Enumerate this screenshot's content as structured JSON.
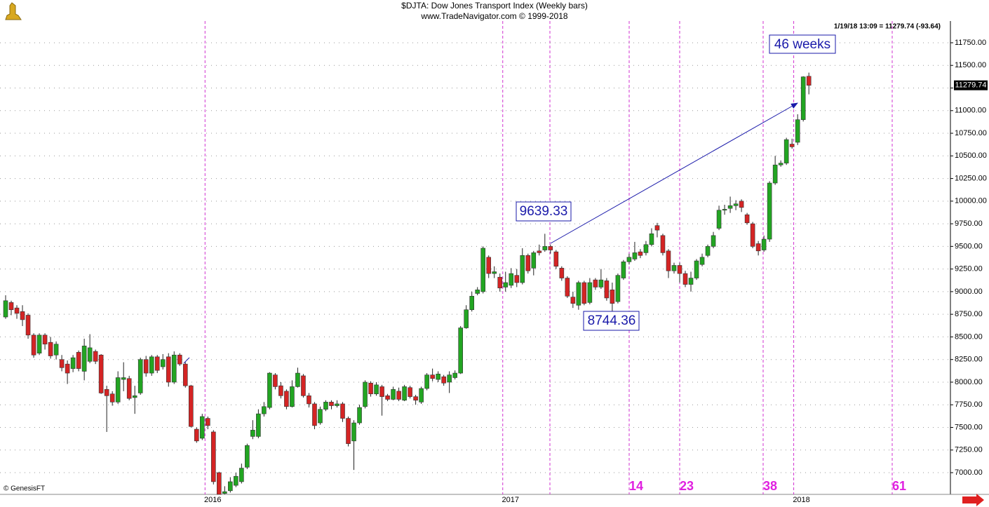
{
  "chart_data": {
    "type": "candlestick",
    "title": "$DJTA:  Dow Jones Transport Index  (Weekly bars)",
    "subtitle": "www.TradeNavigator.com © 1999-2018",
    "info": "1/19/18 13:09 = 11279.74 (-93.64)",
    "annotation": "46 weeks",
    "credit": "© GenesisFT",
    "cycle_labels": [
      14,
      23,
      38,
      61
    ],
    "up_color": "#22a522",
    "down_color": "#d42424",
    "ylim": [
      6760,
      11990
    ],
    "xlim": [
      -1,
      168.2
    ],
    "grid": true,
    "yticks": [
      {
        "value": 7000,
        "label": "7000.00"
      },
      {
        "value": 7250,
        "label": "7250.00"
      },
      {
        "value": 7500,
        "label": "7500.00"
      },
      {
        "value": 7750,
        "label": "7750.00"
      },
      {
        "value": 8000,
        "label": "8000.00"
      },
      {
        "value": 8250,
        "label": "8250.00"
      },
      {
        "value": 8500,
        "label": "8500.00"
      },
      {
        "value": 8750,
        "label": "8750.00"
      },
      {
        "value": 9000,
        "label": "9000.00"
      },
      {
        "value": 9250,
        "label": "9250.00"
      },
      {
        "value": 9500,
        "label": "9500.00"
      },
      {
        "value": 9750,
        "label": "9750.00"
      },
      {
        "value": 10000,
        "label": "10000.00"
      },
      {
        "value": 10250,
        "label": "10250.00"
      },
      {
        "value": 10500,
        "label": "10500.00"
      },
      {
        "value": 10750,
        "label": "10750.00"
      },
      {
        "value": 11000,
        "label": "11000.00"
      },
      {
        "value": 11250,
        "label": "11250.00"
      },
      {
        "value": 11500,
        "label": "11500.00"
      },
      {
        "value": 11750,
        "label": "11750.00"
      }
    ],
    "xticks": [
      {
        "value": 35.5,
        "label": "2016"
      },
      {
        "value": 88.5,
        "label": "2017"
      },
      {
        "value": 140.3,
        "label": "2018"
      }
    ],
    "open": [
      8720,
      8880,
      8820,
      8780,
      8740,
      8520,
      8320,
      8520,
      8440,
      8300,
      8250,
      8200,
      8150,
      8330,
      8120,
      8230,
      8340,
      8300,
      7920,
      7870,
      7780,
      8030,
      8040,
      7830,
      7880,
      8250,
      8100,
      8280,
      8170,
      8280,
      8000,
      8300,
      8200,
      7960,
      7480,
      7380,
      7600,
      7450,
      7000,
      6770,
      6800,
      6860,
      6900,
      7060,
      7400,
      7400,
      7650,
      7720,
      8080,
      7960,
      7900,
      7730,
      7950,
      8070,
      7850,
      7760,
      7550,
      7700,
      7780,
      7740,
      7760,
      7600,
      7350,
      7550,
      7730,
      7990,
      7870,
      7950,
      7850,
      7810,
      7900,
      7800,
      7940,
      7840,
      7780,
      7930,
      8080,
      8030,
      8060,
      8000,
      8050,
      8100,
      8600,
      8800,
      8980,
      9000,
      9380,
      9200,
      9160,
      9050,
      9070,
      9180,
      9100,
      9400,
      9260,
      9450,
      9460,
      9500,
      9440,
      9260,
      9150,
      8940,
      8850,
      9100,
      8880,
      9130,
      9050,
      9120,
      9020,
      8890,
      9150,
      9330,
      9360,
      9440,
      9430,
      9520,
      9730,
      9620,
      9450,
      9230,
      9290,
      9200,
      9080,
      9150,
      9300,
      9400,
      9500,
      9700,
      9900,
      9920,
      9950,
      10000,
      9850,
      9750,
      9530,
      9460,
      9580,
      10200,
      10400,
      10420,
      10630,
      10650,
      10900,
      11380
    ],
    "high": [
      8960,
      8900,
      8850,
      8850,
      8760,
      8540,
      8540,
      8540,
      8500,
      8450,
      8300,
      8240,
      8300,
      8350,
      8480,
      8530,
      8360,
      8310,
      7960,
      7900,
      8120,
      8220,
      8070,
      7960,
      8270,
      8290,
      8300,
      8300,
      8310,
      8320,
      8340,
      8320,
      8220,
      7970,
      7500,
      7650,
      7620,
      7470,
      7010,
      6850,
      6950,
      7000,
      7100,
      7320,
      7580,
      7700,
      7780,
      8110,
      8100,
      8000,
      7920,
      8020,
      8160,
      8090,
      7880,
      7780,
      7730,
      7800,
      7800,
      7800,
      7780,
      7620,
      7580,
      7750,
      8020,
      8010,
      8000,
      7970,
      7870,
      7950,
      7940,
      7970,
      7960,
      7860,
      7950,
      8100,
      8150,
      8120,
      8080,
      8120,
      8130,
      8620,
      8850,
      9000,
      9050,
      9500,
      9400,
      9280,
      9200,
      9220,
      9260,
      9250,
      9480,
      9420,
      9450,
      9520,
      9639.33,
      9520,
      9460,
      9280,
      9170,
      9000,
      9120,
      9120,
      9150,
      9150,
      9250,
      9150,
      9100,
      9200,
      9350,
      9420,
      9550,
      9470,
      9560,
      9700,
      9760,
      9640,
      9470,
      9320,
      9320,
      9230,
      9220,
      9360,
      9420,
      9520,
      9660,
      9950,
      9960,
      10050,
      10010,
      10020,
      9870,
      9770,
      9560,
      9620,
      10220,
      10500,
      10450,
      10700,
      10690,
      10960,
      11380,
      11420
    ],
    "low": [
      8700,
      8740,
      8700,
      8620,
      8480,
      8270,
      8300,
      8360,
      8260,
      8250,
      8120,
      7980,
      8110,
      8120,
      8020,
      8210,
      8200,
      7870,
      7450,
      7740,
      7760,
      7900,
      7800,
      7650,
      7860,
      8060,
      8070,
      8100,
      8140,
      7950,
      7980,
      8180,
      7940,
      7500,
      7330,
      7360,
      7480,
      6870,
      6760,
      6760,
      6780,
      6840,
      6880,
      7040,
      7370,
      7380,
      7620,
      7700,
      7920,
      7820,
      7700,
      7720,
      7940,
      7830,
      7720,
      7480,
      7530,
      7680,
      7700,
      7720,
      7560,
      7290,
      7030,
      7530,
      7710,
      7840,
      7850,
      7630,
      7790,
      7800,
      7790,
      7790,
      7820,
      7750,
      7760,
      7910,
      8010,
      8000,
      7960,
      7880,
      8030,
      8090,
      8590,
      8780,
      8960,
      8980,
      9150,
      9150,
      9000,
      9000,
      9040,
      9050,
      9080,
      9200,
      9180,
      9400,
      9440,
      9420,
      9250,
      9120,
      8930,
      8820,
      8800,
      8850,
      8860,
      9020,
      9030,
      8900,
      8744.36,
      8870,
      9130,
      9300,
      9340,
      9370,
      9400,
      9500,
      9600,
      9400,
      9150,
      9200,
      9100,
      9050,
      9000,
      9130,
      9280,
      9380,
      9480,
      9680,
      9850,
      9870,
      9900,
      9880,
      9740,
      9480,
      9400,
      9440,
      9550,
      10180,
      10380,
      10400,
      10580,
      10620,
      10880,
      11180
    ],
    "close": [
      8900,
      8800,
      8760,
      8690,
      8520,
      8300,
      8520,
      8420,
      8290,
      8420,
      8160,
      8100,
      8270,
      8150,
      8400,
      8380,
      8230,
      7880,
      7850,
      7780,
      8050,
      8050,
      7820,
      7850,
      8250,
      8100,
      8280,
      8130,
      8250,
      8000,
      8300,
      8200,
      7960,
      7510,
      7350,
      7620,
      7520,
      6900,
      6760,
      6790,
      6900,
      6960,
      7050,
      7300,
      7470,
      7650,
      7730,
      8100,
      7950,
      7850,
      7730,
      7950,
      8100,
      7850,
      7760,
      7520,
      7700,
      7780,
      7740,
      7760,
      7600,
      7320,
      7550,
      7720,
      8000,
      7870,
      7970,
      7840,
      7810,
      7920,
      7810,
      7950,
      7840,
      7800,
      7930,
      8080,
      8040,
      8090,
      7990,
      8080,
      8100,
      8600,
      8800,
      8950,
      9020,
      9480,
      9200,
      9220,
      9040,
      9100,
      9200,
      9100,
      9400,
      9230,
      9430,
      9430,
      9500,
      9460,
      9280,
      9150,
      8950,
      8870,
      9100,
      8870,
      9100,
      9050,
      9130,
      8930,
      8870,
      9180,
      9330,
      9380,
      9430,
      9400,
      9520,
      9640,
      9680,
      9430,
      9230,
      9290,
      9200,
      9080,
      9150,
      9340,
      9380,
      9500,
      9620,
      9900,
      9910,
      9950,
      9970,
      9930,
      9760,
      9500,
      9450,
      9580,
      10200,
      10400,
      10420,
      10680,
      10600,
      10900,
      11373.38,
      11279.74
    ]
  }
}
